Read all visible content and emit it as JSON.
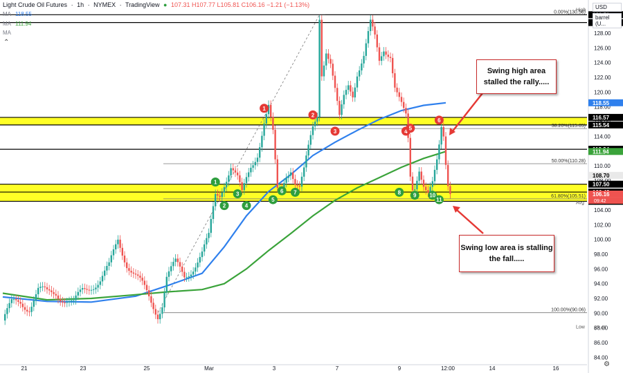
{
  "header": {
    "symbol": "Light Crude Oil Futures",
    "interval": "1h",
    "exchange": "NYMEX",
    "brand": "TradingView",
    "ohlc": "107.31  H107.77  L105.81  C106.16  −1.21 (−1.13%)"
  },
  "indicators": [
    {
      "label": "MA",
      "value": "118.55",
      "color": "#2f80ed"
    },
    {
      "label": "MA",
      "value": "111.94",
      "color": "#3aa33a"
    },
    {
      "label": "MA",
      "value": "",
      "color": "#999999"
    }
  ],
  "currency": "USD",
  "unit": "barrel (U...",
  "annotations": {
    "swing_high_note": "Swing high area stalled the rally.....",
    "swing_low_note": "Swing low area is stalling the fall....."
  },
  "chart_data": {
    "type": "candlestick",
    "title": "",
    "y_axis": {
      "min": 83,
      "max": 131,
      "ticks": [
        84,
        86,
        88,
        90,
        92,
        94,
        96,
        98,
        100,
        102,
        104,
        106,
        108,
        110,
        112,
        114,
        116,
        118,
        120,
        122,
        124,
        126,
        128
      ]
    },
    "x_axis": {
      "labels": [
        "21",
        "23",
        "25",
        "Mar",
        "3",
        "7",
        "9",
        "12:00",
        "14",
        "16"
      ]
    },
    "price_series": [
      [
        0,
        89
      ],
      [
        4,
        91
      ],
      [
        8,
        91.5
      ],
      [
        12,
        91
      ],
      [
        16,
        93
      ],
      [
        20,
        92.5
      ],
      [
        24,
        93
      ],
      [
        28,
        92
      ],
      [
        32,
        91
      ],
      [
        36,
        93
      ],
      [
        40,
        94
      ],
      [
        44,
        94.5
      ],
      [
        48,
        96
      ],
      [
        52,
        100
      ],
      [
        56,
        97
      ],
      [
        60,
        95
      ],
      [
        64,
        93
      ],
      [
        68,
        91
      ],
      [
        70,
        90.06
      ],
      [
        72,
        91.5
      ],
      [
        74,
        95
      ],
      [
        78,
        96.5
      ],
      [
        82,
        95
      ],
      [
        86,
        96.5
      ],
      [
        90,
        98
      ],
      [
        93,
        100
      ],
      [
        95,
        104
      ],
      [
        96,
        106
      ],
      [
        98,
        106.3
      ],
      [
        100,
        108
      ],
      [
        103,
        110
      ],
      [
        106,
        108
      ],
      [
        108,
        105.8
      ],
      [
        110,
        108
      ],
      [
        112,
        110
      ],
      [
        115,
        112
      ],
      [
        118,
        116
      ],
      [
        120,
        117.8
      ],
      [
        122,
        114
      ],
      [
        123,
        110
      ],
      [
        124,
        106.3
      ],
      [
        126,
        107
      ],
      [
        128,
        109
      ],
      [
        130,
        110
      ],
      [
        132,
        108
      ],
      [
        134,
        107
      ],
      [
        136,
        109
      ],
      [
        138,
        112
      ],
      [
        140,
        115
      ],
      [
        142,
        117
      ],
      [
        143,
        130.5
      ],
      [
        144,
        123
      ],
      [
        146,
        126
      ],
      [
        148,
        124
      ],
      [
        150,
        120
      ],
      [
        152,
        116
      ],
      [
        154,
        119
      ],
      [
        156,
        121
      ],
      [
        158,
        120
      ],
      [
        160,
        123
      ],
      [
        163,
        125
      ],
      [
        166,
        129
      ],
      [
        168,
        127
      ],
      [
        170,
        124
      ],
      [
        172,
        126
      ],
      [
        175,
        125.5
      ],
      [
        177,
        121
      ],
      [
        179,
        119
      ],
      [
        181,
        117
      ],
      [
        182,
        116.2
      ],
      [
        183,
        113
      ],
      [
        184,
        108
      ],
      [
        185,
        106.5
      ],
      [
        186,
        107
      ],
      [
        188,
        110
      ],
      [
        190,
        108
      ],
      [
        192,
        106.7
      ],
      [
        194,
        107.5
      ],
      [
        196,
        110
      ],
      [
        197,
        112
      ],
      [
        198,
        114.5
      ],
      [
        199,
        113.5
      ],
      [
        200,
        110
      ],
      [
        201,
        107.5
      ],
      [
        202,
        106.16
      ]
    ],
    "moving_averages": [
      {
        "name": "MA",
        "value": 118.55,
        "points": [
          [
            0,
            92.2
          ],
          [
            20,
            91.6
          ],
          [
            40,
            91.5
          ],
          [
            60,
            92.3
          ],
          [
            75,
            93.8
          ],
          [
            90,
            95.4
          ],
          [
            100,
            99
          ],
          [
            110,
            103.2
          ],
          [
            120,
            106.5
          ],
          [
            130,
            108.8
          ],
          [
            140,
            111.4
          ],
          [
            150,
            113.2
          ],
          [
            160,
            114.8
          ],
          [
            170,
            116.3
          ],
          [
            180,
            117.5
          ],
          [
            190,
            118.2
          ],
          [
            200,
            118.55
          ]
        ]
      },
      {
        "name": "MA",
        "value": 111.94,
        "points": [
          [
            0,
            92.7
          ],
          [
            20,
            91.8
          ],
          [
            40,
            92
          ],
          [
            60,
            92.5
          ],
          [
            75,
            92.9
          ],
          [
            90,
            93.2
          ],
          [
            100,
            94
          ],
          [
            110,
            96
          ],
          [
            120,
            98.5
          ],
          [
            130,
            100.8
          ],
          [
            140,
            103.2
          ],
          [
            150,
            105.3
          ],
          [
            160,
            107
          ],
          [
            170,
            108.4
          ],
          [
            180,
            109.8
          ],
          [
            190,
            111
          ],
          [
            200,
            111.94
          ]
        ]
      }
    ],
    "horizontal_levels": [
      {
        "price": 130.5,
        "label": "130.50",
        "color": "#000000"
      },
      {
        "price": 129.44,
        "label": "129.44",
        "color": "#000000"
      },
      {
        "price": 116.57,
        "label": "116.57",
        "color": "#000000"
      },
      {
        "price": 115.54,
        "label": "115.54",
        "color": "#000000"
      },
      {
        "price": 112.24,
        "label": "112.24",
        "color": "#000000"
      },
      {
        "price": 107.5,
        "label": "107.50",
        "color": "#000000"
      },
      {
        "price": 106.43,
        "label": "106.43",
        "color": "#000000"
      },
      {
        "price": 105.18,
        "label": "105.18",
        "color": "#000000"
      }
    ],
    "fib_levels": [
      {
        "price": 130.5,
        "label": "0.00%(130.50)"
      },
      {
        "price": 115.05,
        "label": "38.20%(115.05)"
      },
      {
        "price": 110.28,
        "label": "50.00%(110.28)"
      },
      {
        "price": 105.51,
        "label": "61.80%(105.51)"
      },
      {
        "price": 90.06,
        "label": "100.00%(90.06)"
      }
    ],
    "highlight_zones": [
      {
        "from": 115.54,
        "to": 116.57
      },
      {
        "from": 105.18,
        "to": 107.5
      }
    ],
    "price_tags": [
      {
        "price": 130.5,
        "label": "130.50",
        "bg": "#000000",
        "fg": "#ffffff"
      },
      {
        "price": 129.44,
        "label": "129.44",
        "bg": "#000000",
        "fg": "#ffffff"
      },
      {
        "price": 118.55,
        "label": "118.55",
        "bg": "#2f80ed",
        "fg": "#ffffff"
      },
      {
        "price": 116.57,
        "label": "116.57",
        "bg": "#000000",
        "fg": "#ffffff"
      },
      {
        "price": 115.54,
        "label": "115.54",
        "bg": "#000000",
        "fg": "#ffffff"
      },
      {
        "price": 112.24,
        "label": "112.24",
        "bg": "#000000",
        "fg": "#ffffff"
      },
      {
        "price": 111.94,
        "label": "111.94",
        "bg": "#3aa33a",
        "fg": "#ffffff"
      },
      {
        "price": 108.7,
        "label": "108.70",
        "bg": "#e9e9e9",
        "fg": "#000000"
      },
      {
        "price": 107.5,
        "label": "107.50",
        "bg": "#000000",
        "fg": "#ffffff"
      },
      {
        "price": 106.43,
        "label": "106.43",
        "bg": "#000000",
        "fg": "#ffffff"
      },
      {
        "price": 106.16,
        "label": "106.16",
        "bg": "#ef5350",
        "fg": "#ffffff"
      },
      {
        "price": 105.18,
        "label": "105.18",
        "bg": "#000000",
        "fg": "#ffffff"
      }
    ],
    "timer": "09:42",
    "axis_marks": [
      {
        "price": 130.5,
        "tag": "High",
        "label": "130.50"
      },
      {
        "price": 104.34,
        "tag": "Avg",
        "label": "104.34"
      },
      {
        "price": 87.46,
        "tag": "Low",
        "label": "87.46"
      }
    ],
    "touch_markers": [
      {
        "label": "1",
        "t": 118,
        "price": 117.8,
        "color": "#e53935"
      },
      {
        "label": "2",
        "t": 140,
        "price": 116.9,
        "color": "#e53935"
      },
      {
        "label": "3",
        "t": 150,
        "price": 114.7,
        "color": "#e53935"
      },
      {
        "label": "4",
        "t": 182,
        "price": 114.7,
        "color": "#e53935"
      },
      {
        "label": "5",
        "t": 184,
        "price": 115.1,
        "color": "#e53935"
      },
      {
        "label": "6",
        "t": 197,
        "price": 116.2,
        "color": "#e53935"
      },
      {
        "label": "1",
        "t": 96,
        "price": 107.8,
        "color": "#2e9e3e"
      },
      {
        "label": "2",
        "t": 100,
        "price": 104.6,
        "color": "#2e9e3e"
      },
      {
        "label": "3",
        "t": 106,
        "price": 106.2,
        "color": "#2e9e3e"
      },
      {
        "label": "4",
        "t": 110,
        "price": 104.6,
        "color": "#2e9e3e"
      },
      {
        "label": "5",
        "t": 122,
        "price": 105.4,
        "color": "#2e9e3e"
      },
      {
        "label": "6",
        "t": 126,
        "price": 106.6,
        "color": "#2e9e3e"
      },
      {
        "label": "7",
        "t": 132,
        "price": 106.4,
        "color": "#2e9e3e"
      },
      {
        "label": "8",
        "t": 179,
        "price": 106.4,
        "color": "#2e9e3e"
      },
      {
        "label": "9",
        "t": 186,
        "price": 106.0,
        "color": "#2e9e3e"
      },
      {
        "label": "10",
        "t": 194,
        "price": 106.0,
        "color": "#2e9e3e"
      },
      {
        "label": "11",
        "t": 197,
        "price": 105.4,
        "color": "#2e9e3e"
      }
    ]
  }
}
